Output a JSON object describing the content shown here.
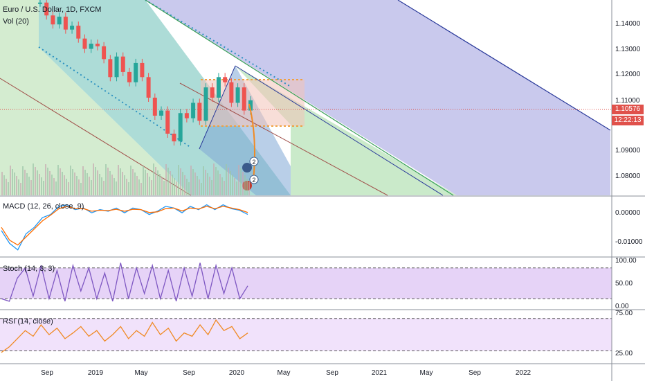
{
  "chart_data": [
    {
      "type": "line",
      "title": "Euro / U.S. Dollar, 1D, FXCM",
      "subtitle": "Vol (20)",
      "x_ticks": [
        "Sep",
        "2019",
        "May",
        "Sep",
        "2020",
        "May",
        "Sep",
        "2021",
        "May",
        "Sep",
        "2022"
      ],
      "y_ticks": [
        "1.14000",
        "1.13000",
        "1.12000",
        "1.11000",
        "1.09000",
        "1.08000"
      ],
      "ylim": [
        1.072,
        1.148
      ],
      "last_price": "1.10576",
      "countdown": "12:22:13",
      "series": [
        {
          "values": [
            1.147,
            1.142,
            1.1385,
            1.1415,
            1.1365,
            1.138,
            1.133,
            1.129,
            1.131,
            1.13,
            1.125,
            1.118,
            1.126,
            1.12,
            1.116,
            1.1235,
            1.118,
            1.11,
            1.103,
            1.105,
            1.096,
            1.093,
            1.104,
            1.102,
            1.108,
            1.101,
            1.114,
            1.11,
            1.118,
            1.116,
            1.108,
            1.114,
            1.105,
            1.109
          ]
        }
      ],
      "annotations": [
        "2",
        "2"
      ]
    },
    {
      "type": "line",
      "title": "MACD (12, 26, close, 9)",
      "y_ticks": [
        "0.00000",
        "-0.01000"
      ],
      "ylim": [
        -0.014,
        0.0045
      ],
      "series": [
        {
          "values": [
            -0.006,
            -0.01,
            -0.012,
            -0.007,
            -0.005,
            -0.002,
            -0.001,
            0.0015,
            0.002,
            0.0005,
            0.001,
            -0.0005,
            0.0005,
            0.0,
            0.001,
            -0.0005,
            0.001,
            0.0005,
            -0.001,
            0.0,
            0.0015,
            0.001,
            -0.0005,
            0.0015,
            0.0005,
            0.002,
            0.0005,
            0.002,
            0.0008,
            0.0003,
            -0.001
          ]
        },
        {
          "values": [
            -0.005,
            -0.009,
            -0.0105,
            -0.008,
            -0.0055,
            -0.003,
            -0.0012,
            0.0008,
            0.0015,
            0.0008,
            0.0008,
            0.0,
            0.0003,
            0.0002,
            0.0006,
            0.0,
            0.0006,
            0.0005,
            -0.0004,
            -0.0002,
            0.0008,
            0.001,
            0.0001,
            0.001,
            0.0007,
            0.0015,
            0.0008,
            0.0015,
            0.001,
            0.0005,
            -0.0004
          ]
        }
      ]
    },
    {
      "type": "line",
      "title": "Stoch (14, 3, 3)",
      "y_ticks": [
        "100.00",
        "50.00",
        "0.00"
      ],
      "ylim": [
        0,
        100
      ],
      "series": [
        {
          "values": [
            20,
            15,
            60,
            80,
            25,
            85,
            20,
            75,
            15,
            85,
            35,
            80,
            20,
            70,
            15,
            90,
            20,
            80,
            30,
            85,
            20,
            75,
            15,
            80,
            25,
            90,
            20,
            85,
            30,
            80,
            20,
            45
          ]
        }
      ]
    },
    {
      "type": "line",
      "title": "RSI (14, close)",
      "y_ticks": [
        "75.00",
        "25.00"
      ],
      "ylim": [
        15,
        80
      ],
      "series": [
        {
          "values": [
            28,
            35,
            45,
            55,
            48,
            62,
            50,
            58,
            45,
            52,
            60,
            48,
            55,
            42,
            50,
            60,
            45,
            55,
            48,
            65,
            50,
            58,
            42,
            52,
            48,
            62,
            50,
            68,
            55,
            60,
            45,
            52
          ]
        }
      ]
    }
  ]
}
